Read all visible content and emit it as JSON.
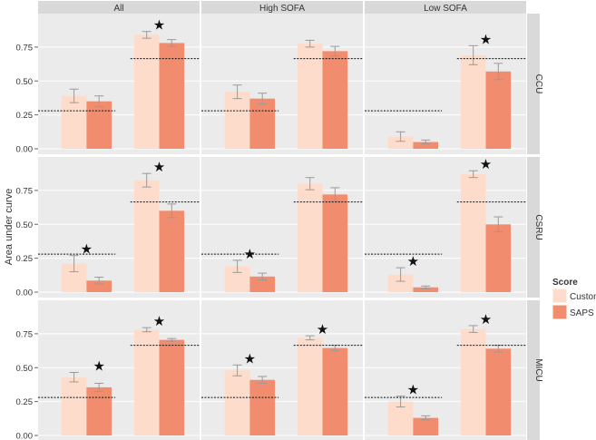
{
  "chart_data": {
    "type": "bar",
    "ylabel": "Area under curve",
    "ylim": [
      0,
      0.97
    ],
    "yticks": [
      "0.00",
      "0.25",
      "0.50",
      "0.75"
    ],
    "ytick_values": [
      0,
      0.25,
      0.5,
      0.75
    ],
    "column_facets": [
      "All",
      "High SOFA",
      "Low SOFA"
    ],
    "row_facets": [
      "CCU",
      "CSRU",
      "MICU"
    ],
    "legend": {
      "title": "Score",
      "items": [
        {
          "label": "Custom",
          "color": "#FDDCCB"
        },
        {
          "label": "SAPS",
          "color": "#F28C6E"
        }
      ]
    },
    "significance_marker": "★",
    "panels": [
      {
        "row": "CCU",
        "col": "All",
        "groups": [
          {
            "baseline": 0.28,
            "custom": 0.39,
            "custom_err": 0.05,
            "saps": 0.35,
            "saps_err": 0.04,
            "star": null
          },
          {
            "baseline": 0.665,
            "custom": 0.84,
            "custom_err": 0.025,
            "saps": 0.78,
            "saps_err": 0.025,
            "star": "custom"
          }
        ]
      },
      {
        "row": "CCU",
        "col": "High SOFA",
        "groups": [
          {
            "baseline": 0.28,
            "custom": 0.42,
            "custom_err": 0.05,
            "saps": 0.37,
            "saps_err": 0.04,
            "star": null
          },
          {
            "baseline": 0.665,
            "custom": 0.775,
            "custom_err": 0.025,
            "saps": 0.72,
            "saps_err": 0.035,
            "star": null
          }
        ]
      },
      {
        "row": "CCU",
        "col": "Low SOFA",
        "groups": [
          {
            "baseline": 0.28,
            "custom": 0.09,
            "custom_err": 0.035,
            "saps": 0.05,
            "saps_err": 0.015,
            "star": null
          },
          {
            "baseline": 0.665,
            "custom": 0.69,
            "custom_err": 0.07,
            "saps": 0.57,
            "saps_err": 0.06,
            "star": "custom"
          }
        ]
      },
      {
        "row": "CSRU",
        "col": "All",
        "groups": [
          {
            "baseline": 0.28,
            "custom": 0.21,
            "custom_err": 0.06,
            "saps": 0.085,
            "saps_err": 0.025,
            "star": "custom"
          },
          {
            "baseline": 0.665,
            "custom": 0.825,
            "custom_err": 0.05,
            "saps": 0.6,
            "saps_err": 0.05,
            "star": "custom"
          }
        ]
      },
      {
        "row": "CSRU",
        "col": "High SOFA",
        "groups": [
          {
            "baseline": 0.28,
            "custom": 0.19,
            "custom_err": 0.045,
            "saps": 0.115,
            "saps_err": 0.025,
            "star": "custom"
          },
          {
            "baseline": 0.665,
            "custom": 0.8,
            "custom_err": 0.045,
            "saps": 0.72,
            "saps_err": 0.05,
            "star": null
          }
        ]
      },
      {
        "row": "CSRU",
        "col": "Low SOFA",
        "groups": [
          {
            "baseline": 0.28,
            "custom": 0.13,
            "custom_err": 0.05,
            "saps": 0.035,
            "saps_err": 0.01,
            "star": "custom"
          },
          {
            "baseline": 0.665,
            "custom": 0.87,
            "custom_err": 0.025,
            "saps": 0.5,
            "saps_err": 0.055,
            "star": "custom"
          }
        ]
      },
      {
        "row": "MICU",
        "col": "All",
        "groups": [
          {
            "baseline": 0.28,
            "custom": 0.43,
            "custom_err": 0.035,
            "saps": 0.355,
            "saps_err": 0.03,
            "star": "saps"
          },
          {
            "baseline": 0.665,
            "custom": 0.78,
            "custom_err": 0.015,
            "saps": 0.705,
            "saps_err": 0.01,
            "star": "custom"
          }
        ]
      },
      {
        "row": "MICU",
        "col": "High SOFA",
        "groups": [
          {
            "baseline": 0.28,
            "custom": 0.48,
            "custom_err": 0.04,
            "saps": 0.41,
            "saps_err": 0.025,
            "star": "custom"
          },
          {
            "baseline": 0.665,
            "custom": 0.72,
            "custom_err": 0.015,
            "saps": 0.645,
            "saps_err": 0.02,
            "star": "custom"
          }
        ]
      },
      {
        "row": "MICU",
        "col": "Low SOFA",
        "groups": [
          {
            "baseline": 0.28,
            "custom": 0.25,
            "custom_err": 0.04,
            "saps": 0.13,
            "saps_err": 0.015,
            "star": "custom"
          },
          {
            "baseline": 0.665,
            "custom": 0.785,
            "custom_err": 0.025,
            "saps": 0.64,
            "saps_err": 0.025,
            "star": "custom"
          }
        ]
      }
    ]
  }
}
